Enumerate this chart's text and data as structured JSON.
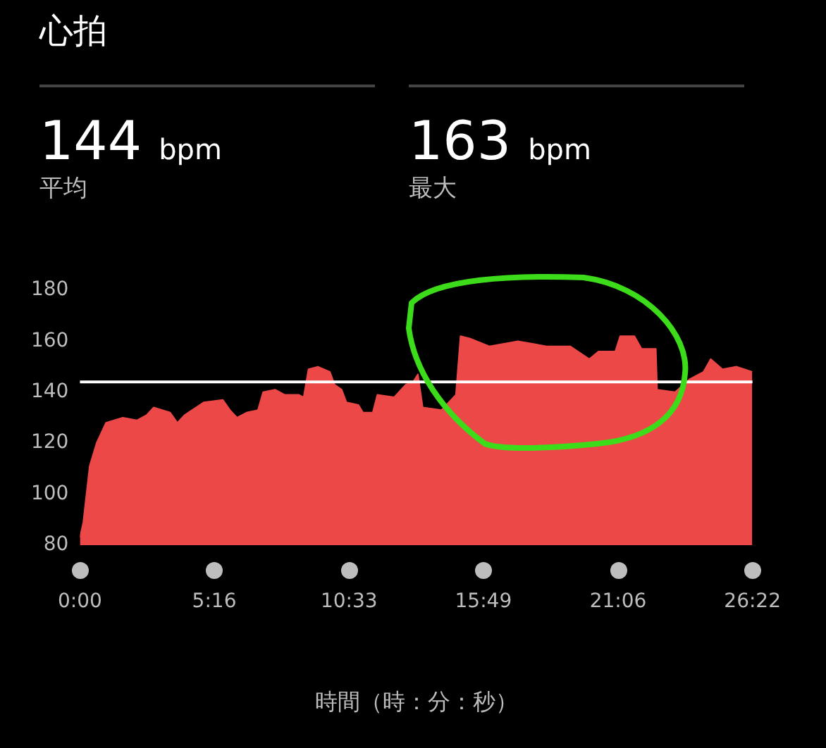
{
  "chart_data": {
    "type": "area",
    "title": "心拍",
    "xlabel": "時間（時：分：秒）",
    "annotations": [
      "144 bpm",
      "平均",
      "163 bpm",
      "最大"
    ],
    "x": [
      0,
      0.13,
      0.38,
      0.65,
      1.02,
      1.68,
      2.24,
      2.61,
      2.89,
      3.54,
      3.82,
      4.1,
      4.85,
      5.6,
      5.88,
      6.16,
      6.53,
      6.98,
      7.18,
      7.65,
      8.02,
      8.58,
      8.77,
      8.96,
      9.33,
      9.8,
      9.98,
      10.26,
      10.45,
      10.92,
      11.1,
      11.48,
      11.66,
      12.32,
      12.78,
      13.06,
      13.25,
      13.44,
      14.18,
      14.74,
      14.92,
      15.3,
      16.05,
      17.17,
      18.29,
      19.22,
      19.97,
      20.34,
      20.99,
      21.18,
      21.74,
      22.02,
      22.58,
      22.63,
      23.33,
      23.89,
      24.45,
      24.73,
      25.19,
      25.75,
      26.36
    ],
    "series": [
      {
        "color": "#ec4848",
        "values": [
          83,
          89,
          111,
          120,
          128,
          130,
          129,
          131,
          134,
          132,
          128,
          131,
          136,
          137,
          133,
          130,
          132,
          133,
          140,
          141,
          139,
          139,
          138,
          149,
          150,
          148,
          143,
          141,
          136,
          135,
          132,
          132,
          139,
          138,
          143,
          144,
          147,
          134,
          133,
          139,
          162,
          161,
          158,
          160,
          158,
          158,
          153,
          156,
          156,
          162,
          162,
          157,
          157,
          141,
          140,
          145,
          148,
          153,
          149,
          150,
          148
        ]
      }
    ],
    "xlim": [
      0,
      26.367
    ],
    "xticks": [
      {
        "value": 0,
        "label": "0:00"
      },
      {
        "value": 5.267,
        "label": "5:16"
      },
      {
        "value": 10.55,
        "label": "10:33"
      },
      {
        "value": 15.817,
        "label": "15:49"
      },
      {
        "value": 21.1,
        "label": "21:06"
      },
      {
        "value": 26.367,
        "label": "26:22"
      }
    ],
    "ylim": [
      80,
      180
    ],
    "yticks": [
      80,
      100,
      120,
      140,
      160,
      180
    ],
    "ref_lines": [
      {
        "axis": "y",
        "value": 144,
        "color": "#ffffff"
      }
    ],
    "legend": false
  }
}
